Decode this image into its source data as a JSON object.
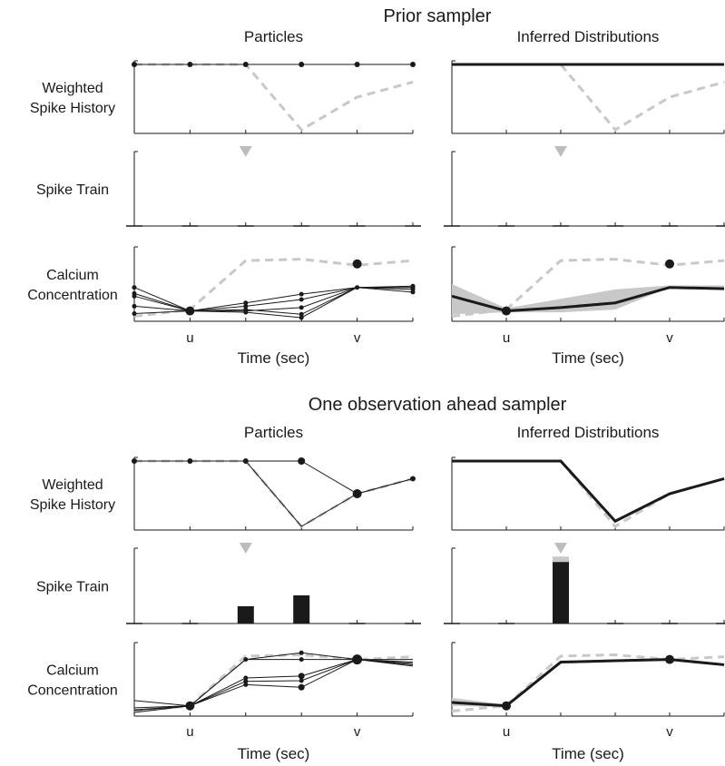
{
  "sections": [
    {
      "title": "Prior sampler",
      "columns": [
        "Particles",
        "Inferred Distributions"
      ],
      "rows": [
        {
          "label_lines": [
            "Weighted",
            "Spike History"
          ]
        },
        {
          "label_lines": [
            "Spike Train"
          ]
        },
        {
          "label_lines": [
            "Calcium",
            "Concentration"
          ]
        }
      ],
      "xlabel": "Time (sec)",
      "xticks": [
        {
          "t": 1,
          "label": "u"
        },
        {
          "t": 4,
          "label": "v"
        }
      ]
    },
    {
      "title": "One observation ahead sampler",
      "columns": [
        "Particles",
        "Inferred Distributions"
      ],
      "rows": [
        {
          "label_lines": [
            "Weighted",
            "Spike History"
          ]
        },
        {
          "label_lines": [
            "Spike Train"
          ]
        },
        {
          "label_lines": [
            "Calcium",
            "Concentration"
          ]
        }
      ],
      "xlabel": "Time (sec)",
      "xticks": [
        {
          "t": 1,
          "label": "u"
        },
        {
          "t": 4,
          "label": "v"
        }
      ]
    }
  ],
  "colors": {
    "particle": "#1a1a1a",
    "truth": "#c8c8c8",
    "band": "#c8c8c8",
    "bar": "#1a1a1a"
  },
  "chart_data": [
    {
      "type": "line",
      "section": 0,
      "row": 0,
      "col": 0,
      "xlim": [
        0,
        5
      ],
      "ylim": [
        0,
        1
      ],
      "truth": {
        "x": [
          0,
          1,
          2,
          3,
          4,
          5
        ],
        "y": [
          1,
          1,
          1,
          0,
          0.5,
          0.73
        ]
      },
      "particles": [
        {
          "x": [
            0,
            1,
            2,
            3,
            4,
            5
          ],
          "y": [
            1,
            1,
            1,
            1,
            1,
            1
          ]
        }
      ],
      "markers": [
        {
          "x": 0,
          "y": 1,
          "s": 3
        },
        {
          "x": 1,
          "y": 1,
          "s": 3
        },
        {
          "x": 2,
          "y": 1,
          "s": 3
        },
        {
          "x": 3,
          "y": 1,
          "s": 3
        },
        {
          "x": 4,
          "y": 1,
          "s": 3
        },
        {
          "x": 5,
          "y": 1,
          "s": 3
        }
      ]
    },
    {
      "type": "line",
      "section": 0,
      "row": 0,
      "col": 1,
      "xlim": [
        0,
        5
      ],
      "ylim": [
        0,
        1
      ],
      "truth": {
        "x": [
          0,
          1,
          2,
          3,
          4,
          5
        ],
        "y": [
          1,
          1,
          1,
          0,
          0.5,
          0.73
        ]
      },
      "mean": {
        "x": [
          0,
          1,
          2,
          3,
          4,
          5
        ],
        "y": [
          1,
          1,
          1,
          1,
          1,
          1
        ]
      }
    },
    {
      "type": "bar",
      "section": 0,
      "row": 1,
      "col": 0,
      "xlim": [
        0,
        5
      ],
      "ylim": [
        0,
        1
      ],
      "true_spike": 2,
      "bars": [
        {
          "x": 0,
          "value": 0
        },
        {
          "x": 1,
          "value": 0
        },
        {
          "x": 2,
          "value": 0
        },
        {
          "x": 3,
          "value": 0
        },
        {
          "x": 4,
          "value": 0
        },
        {
          "x": 5,
          "value": 0
        }
      ]
    },
    {
      "type": "bar",
      "section": 0,
      "row": 1,
      "col": 1,
      "xlim": [
        0,
        5
      ],
      "ylim": [
        0,
        1
      ],
      "true_spike": 2,
      "bars": [
        {
          "x": 0,
          "value": 0
        },
        {
          "x": 1,
          "value": 0
        },
        {
          "x": 2,
          "value": 0
        },
        {
          "x": 3,
          "value": 0
        },
        {
          "x": 4,
          "value": 0
        },
        {
          "x": 5,
          "value": 0
        }
      ]
    },
    {
      "type": "line",
      "section": 0,
      "row": 2,
      "col": 0,
      "xlim": [
        0,
        5
      ],
      "ylim": [
        0,
        1
      ],
      "truth": {
        "x": [
          0,
          1,
          2,
          3,
          4,
          5
        ],
        "y": [
          0.02,
          0.12,
          0.85,
          0.87,
          0.78,
          0.85
        ]
      },
      "particles": [
        {
          "x": [
            0,
            1,
            2,
            3,
            4,
            5
          ],
          "y": [
            0.45,
            0.1,
            0.22,
            0.35,
            0.45,
            0.47
          ]
        },
        {
          "x": [
            0,
            1,
            2,
            3,
            4,
            5
          ],
          "y": [
            0.36,
            0.1,
            0.17,
            0.27,
            0.45,
            0.45
          ]
        },
        {
          "x": [
            0,
            1,
            2,
            3,
            4,
            5
          ],
          "y": [
            0.17,
            0.1,
            0.12,
            0.05,
            0.45,
            0.42
          ]
        },
        {
          "x": [
            0,
            1,
            2,
            3,
            4,
            5
          ],
          "y": [
            0.06,
            0.1,
            0.1,
            0.15,
            0.45,
            0.38
          ]
        },
        {
          "x": [
            0,
            1,
            2,
            3,
            4,
            5
          ],
          "y": [
            0.32,
            0.1,
            0.08,
            0.0,
            0.45,
            0.45
          ]
        }
      ],
      "markers": [
        {
          "x": 0,
          "y": 0.45,
          "s": 2.5
        },
        {
          "x": 0,
          "y": 0.36,
          "s": 2.5
        },
        {
          "x": 0,
          "y": 0.17,
          "s": 2.5
        },
        {
          "x": 0,
          "y": 0.06,
          "s": 2.5
        },
        {
          "x": 0,
          "y": 0.32,
          "s": 2.5
        },
        {
          "x": 1,
          "y": 0.1,
          "s": 5
        },
        {
          "x": 2,
          "y": 0.22,
          "s": 2.5
        },
        {
          "x": 2,
          "y": 0.17,
          "s": 2.5
        },
        {
          "x": 2,
          "y": 0.12,
          "s": 2.5
        },
        {
          "x": 2,
          "y": 0.08,
          "s": 2.5
        },
        {
          "x": 3,
          "y": 0.35,
          "s": 2.5
        },
        {
          "x": 3,
          "y": 0.27,
          "s": 2.5
        },
        {
          "x": 3,
          "y": 0.15,
          "s": 2.5
        },
        {
          "x": 3,
          "y": 0.05,
          "s": 2.5
        },
        {
          "x": 3,
          "y": 0.0,
          "s": 2.5
        },
        {
          "x": 4,
          "y": 0.45,
          "s": 2.5
        },
        {
          "x": 5,
          "y": 0.47,
          "s": 2.5
        },
        {
          "x": 5,
          "y": 0.45,
          "s": 2.5
        },
        {
          "x": 5,
          "y": 0.42,
          "s": 2.5
        },
        {
          "x": 5,
          "y": 0.38,
          "s": 2.5
        }
      ],
      "observed": [
        {
          "x": 4,
          "y": 0.8
        }
      ]
    },
    {
      "type": "line",
      "section": 0,
      "row": 2,
      "col": 1,
      "xlim": [
        0,
        5
      ],
      "ylim": [
        0,
        1
      ],
      "truth": {
        "x": [
          0,
          1,
          2,
          3,
          4,
          5
        ],
        "y": [
          0.02,
          0.12,
          0.85,
          0.87,
          0.78,
          0.85
        ]
      },
      "band": {
        "x": [
          0,
          1,
          2,
          3,
          4,
          5
        ],
        "lower": [
          0.05,
          0.08,
          0.08,
          0.12,
          0.45,
          0.43
        ],
        "upper": [
          0.5,
          0.14,
          0.28,
          0.42,
          0.48,
          0.48
        ]
      },
      "mean": {
        "x": [
          0,
          1,
          2,
          3,
          4,
          5
        ],
        "y": [
          0.32,
          0.1,
          0.15,
          0.22,
          0.45,
          0.43
        ]
      },
      "markers": [
        {
          "x": 1,
          "y": 0.1,
          "s": 5
        }
      ],
      "observed": [
        {
          "x": 4,
          "y": 0.8
        }
      ]
    },
    {
      "type": "line",
      "section": 1,
      "row": 0,
      "col": 0,
      "xlim": [
        0,
        5
      ],
      "ylim": [
        0,
        1
      ],
      "truth": {
        "x": [
          0,
          1,
          2,
          3,
          4,
          5
        ],
        "y": [
          1,
          1,
          1,
          0,
          0.5,
          0.73
        ]
      },
      "particles": [
        {
          "x": [
            0,
            1,
            2,
            3,
            4,
            5
          ],
          "y": [
            1,
            1,
            1,
            1,
            0.5,
            0.73
          ]
        },
        {
          "x": [
            0,
            1,
            2,
            3,
            4,
            5
          ],
          "y": [
            1,
            1,
            1,
            0,
            0.5,
            0.73
          ]
        }
      ],
      "markers": [
        {
          "x": 0,
          "y": 1,
          "s": 3
        },
        {
          "x": 1,
          "y": 1,
          "s": 3
        },
        {
          "x": 2,
          "y": 1,
          "s": 3
        },
        {
          "x": 3,
          "y": 1,
          "s": 4
        },
        {
          "x": 4,
          "y": 0.5,
          "s": 5
        },
        {
          "x": 5,
          "y": 0.73,
          "s": 3
        }
      ]
    },
    {
      "type": "line",
      "section": 1,
      "row": 0,
      "col": 1,
      "xlim": [
        0,
        5
      ],
      "ylim": [
        0,
        1
      ],
      "truth": {
        "x": [
          0,
          1,
          2,
          3,
          4,
          5
        ],
        "y": [
          1,
          1,
          1,
          0,
          0.5,
          0.73
        ]
      },
      "mean": {
        "x": [
          0,
          1,
          2,
          3,
          4,
          5
        ],
        "y": [
          1,
          1,
          1,
          0.08,
          0.5,
          0.73
        ]
      }
    },
    {
      "type": "bar",
      "section": 1,
      "row": 1,
      "col": 0,
      "xlim": [
        0,
        5
      ],
      "ylim": [
        0,
        1
      ],
      "true_spike": 2,
      "bars": [
        {
          "x": 0,
          "value": 0
        },
        {
          "x": 1,
          "value": 0
        },
        {
          "x": 2,
          "value": 0.2
        },
        {
          "x": 3,
          "value": 0.36
        },
        {
          "x": 4,
          "value": 0
        },
        {
          "x": 5,
          "value": 0
        }
      ]
    },
    {
      "type": "bar",
      "section": 1,
      "row": 1,
      "col": 1,
      "xlim": [
        0,
        5
      ],
      "ylim": [
        0,
        1
      ],
      "true_spike": 2,
      "truth_bar": {
        "x": 2,
        "value": 0.93
      },
      "bars": [
        {
          "x": 0,
          "value": 0
        },
        {
          "x": 1,
          "value": 0
        },
        {
          "x": 2,
          "value": 0.85
        },
        {
          "x": 3,
          "value": 0
        },
        {
          "x": 4,
          "value": 0
        },
        {
          "x": 5,
          "value": 0
        }
      ]
    },
    {
      "type": "line",
      "section": 1,
      "row": 2,
      "col": 0,
      "xlim": [
        0,
        5
      ],
      "ylim": [
        0,
        1
      ],
      "truth": {
        "x": [
          0,
          1,
          2,
          3,
          4,
          5
        ],
        "y": [
          0.02,
          0.1,
          0.85,
          0.87,
          0.8,
          0.84
        ]
      },
      "particles": [
        {
          "x": [
            0,
            1,
            2,
            3,
            4,
            5
          ],
          "y": [
            0.18,
            0.1,
            0.8,
            0.9,
            0.8,
            0.72
          ]
        },
        {
          "x": [
            0,
            1,
            2,
            3,
            4,
            5
          ],
          "y": [
            0.07,
            0.1,
            0.8,
            0.8,
            0.8,
            0.76
          ]
        },
        {
          "x": [
            0,
            1,
            2,
            3,
            4,
            5
          ],
          "y": [
            0.04,
            0.1,
            0.52,
            0.55,
            0.8,
            0.8
          ]
        },
        {
          "x": [
            0,
            1,
            2,
            3,
            4,
            5
          ],
          "y": [
            0.0,
            0.1,
            0.47,
            0.48,
            0.8,
            0.74
          ]
        },
        {
          "x": [
            0,
            1,
            2,
            3,
            4,
            5
          ],
          "y": [
            0.03,
            0.1,
            0.42,
            0.38,
            0.8,
            0.7
          ]
        }
      ],
      "markers": [
        {
          "x": 1,
          "y": 0.1,
          "s": 5
        },
        {
          "x": 2,
          "y": 0.8,
          "s": 2.5
        },
        {
          "x": 2,
          "y": 0.52,
          "s": 2.5
        },
        {
          "x": 2,
          "y": 0.47,
          "s": 2.5
        },
        {
          "x": 2,
          "y": 0.42,
          "s": 2.5
        },
        {
          "x": 3,
          "y": 0.9,
          "s": 2.5
        },
        {
          "x": 3,
          "y": 0.8,
          "s": 2.5
        },
        {
          "x": 3,
          "y": 0.55,
          "s": 3.5
        },
        {
          "x": 3,
          "y": 0.48,
          "s": 2.5
        },
        {
          "x": 3,
          "y": 0.38,
          "s": 3.5
        },
        {
          "x": 4,
          "y": 0.8,
          "s": 5.5
        }
      ]
    },
    {
      "type": "line",
      "section": 1,
      "row": 2,
      "col": 1,
      "xlim": [
        0,
        5
      ],
      "ylim": [
        0,
        1
      ],
      "truth": {
        "x": [
          0,
          1,
          2,
          3,
          4,
          5
        ],
        "y": [
          0.02,
          0.1,
          0.85,
          0.87,
          0.8,
          0.84
        ]
      },
      "band": {
        "x": [
          0,
          1,
          2,
          3,
          4,
          5
        ],
        "lower": [
          0.1,
          0.08,
          0.74,
          0.76,
          0.78,
          0.7
        ],
        "upper": [
          0.22,
          0.12,
          0.78,
          0.8,
          0.82,
          0.74
        ]
      },
      "mean": {
        "x": [
          0,
          1,
          2,
          3,
          4,
          5
        ],
        "y": [
          0.15,
          0.1,
          0.76,
          0.78,
          0.8,
          0.72
        ]
      },
      "markers": [
        {
          "x": 1,
          "y": 0.1,
          "s": 5
        },
        {
          "x": 4,
          "y": 0.8,
          "s": 5
        }
      ]
    }
  ]
}
